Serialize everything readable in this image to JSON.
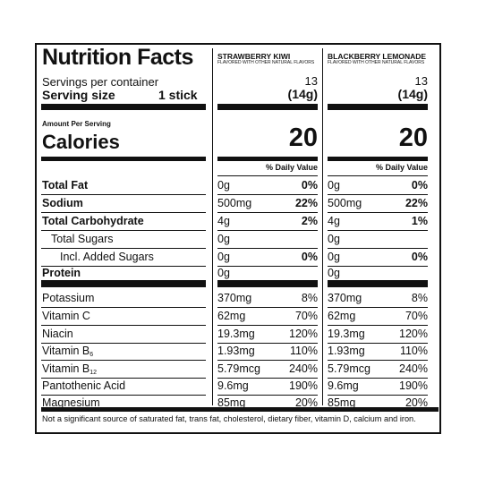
{
  "title": "Nutrition Facts",
  "servings_per_container_label": "Servings per container",
  "serving_size_label": "Serving size",
  "serving_size_value": "1 stick",
  "amount_per_serving_label": "Amount Per Serving",
  "calories_label": "Calories",
  "daily_value_header": "% Daily Value",
  "products": [
    {
      "name": "STRAWBERRY KIWI",
      "subtitle": "FLAVORED WITH OTHER NATURAL FLAVORS",
      "servings": "13",
      "serving_size": "(14g)",
      "calories": "20",
      "macros": [
        {
          "amount": "0g",
          "dv": "0%"
        },
        {
          "amount": "500mg",
          "dv": "22%"
        },
        {
          "amount": "4g",
          "dv": "2%"
        },
        {
          "amount": "0g",
          "dv": ""
        },
        {
          "amount": "0g",
          "dv": "0%"
        },
        {
          "amount": "0g",
          "dv": ""
        }
      ],
      "micros": [
        {
          "amount": "370mg",
          "dv": "8%"
        },
        {
          "amount": "62mg",
          "dv": "70%"
        },
        {
          "amount": "19.3mg",
          "dv": "120%"
        },
        {
          "amount": "1.93mg",
          "dv": "110%"
        },
        {
          "amount": "5.79mcg",
          "dv": "240%"
        },
        {
          "amount": "9.6mg",
          "dv": "190%"
        },
        {
          "amount": "85mg",
          "dv": "20%"
        }
      ]
    },
    {
      "name": "BLACKBERRY LEMONADE",
      "subtitle": "FLAVORED WITH OTHER NATURAL FLAVORS",
      "servings": "13",
      "serving_size": "(14g)",
      "calories": "20",
      "macros": [
        {
          "amount": "0g",
          "dv": "0%"
        },
        {
          "amount": "500mg",
          "dv": "22%"
        },
        {
          "amount": "4g",
          "dv": "1%"
        },
        {
          "amount": "0g",
          "dv": ""
        },
        {
          "amount": "0g",
          "dv": "0%"
        },
        {
          "amount": "0g",
          "dv": ""
        }
      ],
      "micros": [
        {
          "amount": "370mg",
          "dv": "8%"
        },
        {
          "amount": "62mg",
          "dv": "70%"
        },
        {
          "amount": "19.3mg",
          "dv": "120%"
        },
        {
          "amount": "1.93mg",
          "dv": "110%"
        },
        {
          "amount": "5.79mcg",
          "dv": "240%"
        },
        {
          "amount": "9.6mg",
          "dv": "190%"
        },
        {
          "amount": "85mg",
          "dv": "20%"
        }
      ]
    }
  ],
  "macro_labels": [
    {
      "label": "Total Fat",
      "bold": true,
      "indent": 0
    },
    {
      "label": "Sodium",
      "bold": true,
      "indent": 0
    },
    {
      "label": "Total Carbohydrate",
      "bold": true,
      "indent": 0
    },
    {
      "label": "Total Sugars",
      "bold": false,
      "indent": 1
    },
    {
      "label": "Incl. Added Sugars",
      "bold": false,
      "indent": 2
    },
    {
      "label": "Protein",
      "bold": true,
      "indent": 0
    }
  ],
  "micro_labels": [
    {
      "name": "Potassium",
      "sub": ""
    },
    {
      "name": "Vitamin C",
      "sub": ""
    },
    {
      "name": "Niacin",
      "sub": ""
    },
    {
      "name": "Vitamin B",
      "sub": "6"
    },
    {
      "name": "Vitamin B",
      "sub": "12"
    },
    {
      "name": "Pantothenic Acid",
      "sub": ""
    },
    {
      "name": "Magnesium",
      "sub": ""
    }
  ],
  "footnote": "Not a significant source of saturated fat, trans fat, cholesterol, dietary fiber, vitamin D, calcium and iron."
}
